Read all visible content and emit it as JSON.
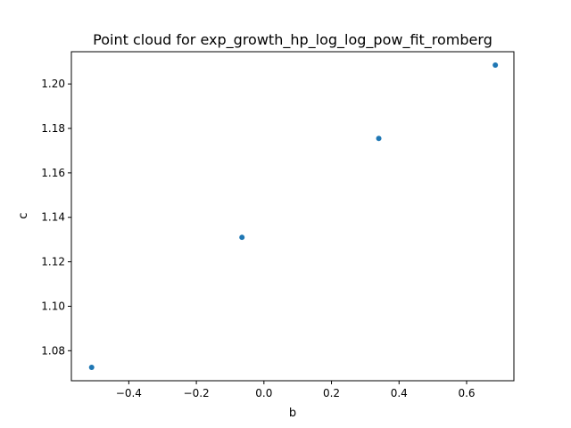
{
  "chart_data": {
    "type": "scatter",
    "title": "Point cloud for exp_growth_hp_log_log_pow_fit_romberg",
    "xlabel": "b",
    "ylabel": "c",
    "xlim": [
      -0.57,
      0.74
    ],
    "ylim": [
      1.0665,
      1.2145
    ],
    "x_ticks": [
      -0.4,
      -0.2,
      0.0,
      0.2,
      0.4,
      0.6
    ],
    "x_tick_labels": [
      "−0.4",
      "−0.2",
      "0.0",
      "0.2",
      "0.4",
      "0.6"
    ],
    "y_ticks": [
      1.08,
      1.1,
      1.12,
      1.14,
      1.16,
      1.18,
      1.2
    ],
    "y_tick_labels": [
      "1.08",
      "1.10",
      "1.12",
      "1.14",
      "1.16",
      "1.18",
      "1.20"
    ],
    "grid": false,
    "series": [
      {
        "color": "#1f77b4",
        "points": [
          {
            "x": -0.51,
            "y": 1.0725
          },
          {
            "x": -0.065,
            "y": 1.131
          },
          {
            "x": 0.34,
            "y": 1.1755
          },
          {
            "x": 0.685,
            "y": 1.2085
          }
        ]
      }
    ]
  }
}
